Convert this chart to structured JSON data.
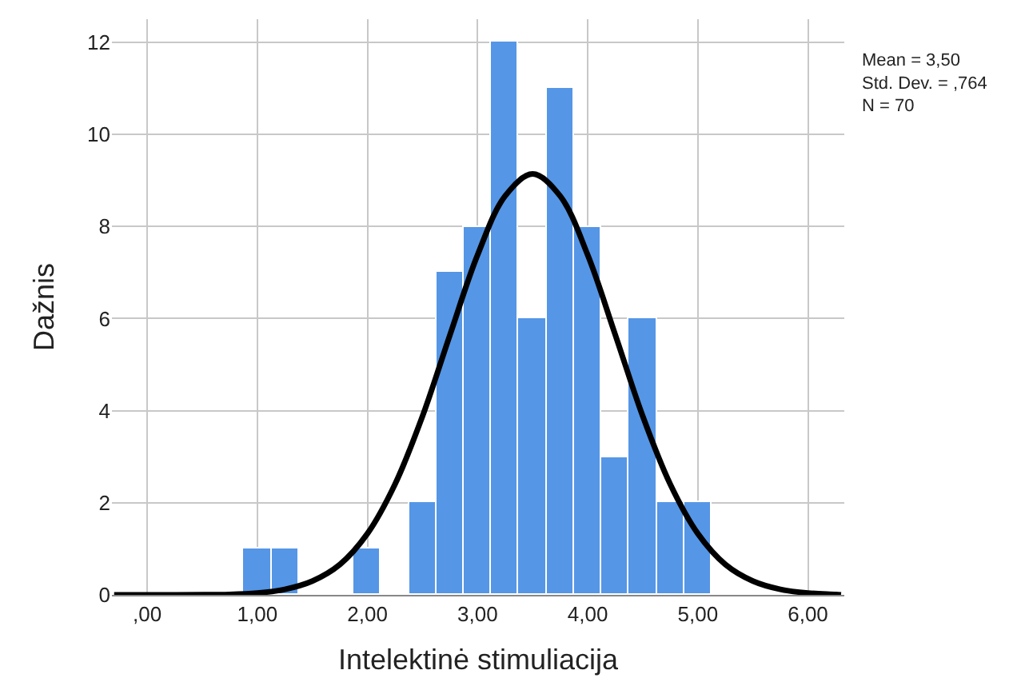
{
  "chart_data": {
    "type": "histogram",
    "xlabel": "Intelektinė stimuliacija",
    "ylabel": "Dažnis",
    "bins": [
      0.875,
      1.125,
      1.375,
      1.625,
      1.875,
      2.125,
      2.375,
      2.625,
      2.875,
      3.125,
      3.375,
      3.625,
      3.875,
      4.125,
      4.375,
      4.625,
      4.875,
      5.125
    ],
    "values": [
      1,
      1,
      0,
      0,
      1,
      0,
      2,
      7,
      8,
      12,
      6,
      11,
      8,
      3,
      6,
      2,
      2
    ],
    "color": "#5596e6",
    "series": [
      {
        "type": "line",
        "color": "#000000",
        "x": [
          -0.3,
          0,
          0.75,
          1.0,
          1.25,
          1.5,
          1.75,
          2.0,
          2.25,
          2.5,
          2.75,
          3.0,
          3.25,
          3.5,
          3.75,
          4.0,
          4.25,
          4.5,
          4.75,
          5.0,
          5.25,
          5.5,
          5.75,
          6.0,
          6.25,
          6.3
        ],
        "values": [
          0,
          0,
          0.01,
          0.04,
          0.12,
          0.3,
          0.66,
          1.33,
          2.4,
          3.88,
          5.65,
          7.38,
          8.66,
          9.14,
          8.66,
          7.38,
          5.65,
          3.88,
          2.4,
          1.33,
          0.66,
          0.3,
          0.12,
          0.04,
          0.01,
          0
        ]
      }
    ],
    "xlim": [
      -0.32,
      6.33
    ],
    "xticks": [
      {
        "value": 0,
        "label": ",00"
      },
      {
        "value": 1,
        "label": "1,00"
      },
      {
        "value": 2,
        "label": "2,00"
      },
      {
        "value": 3,
        "label": "3,00"
      },
      {
        "value": 4,
        "label": "4,00"
      },
      {
        "value": 5,
        "label": "5,00"
      },
      {
        "value": 6,
        "label": "6,00"
      }
    ],
    "ylim": [
      0,
      12.5
    ],
    "yticks": [
      0,
      2,
      4,
      6,
      8,
      10,
      12
    ],
    "grid": true,
    "marker": "none",
    "line_style": "solid",
    "annotations": [
      "Mean = 3,50\nStd. Dev. = ,764\nN = 70"
    ]
  }
}
